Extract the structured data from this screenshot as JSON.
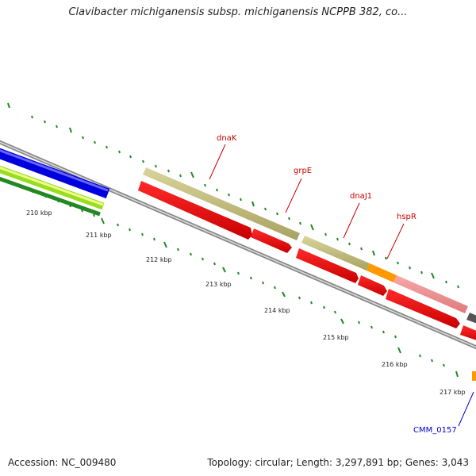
{
  "title": "Clavibacter michiganensis subsp. michiganensis NCPPB 382, co...",
  "genes": [
    {
      "name": "dnaK",
      "color": "#cc0000"
    },
    {
      "name": "grpE",
      "color": "#cc0000"
    },
    {
      "name": "dnaJ1",
      "color": "#cc0000"
    },
    {
      "name": "hspR",
      "color": "#cc0000"
    },
    {
      "name": "CMM_0157",
      "color": "#0000cc"
    }
  ],
  "ruler_labels": [
    "210 kbp",
    "211 kbp",
    "212 kbp",
    "213 kbp",
    "214 kbp",
    "215 kbp",
    "216 kbp",
    "217 kbp"
  ],
  "footer": {
    "accession": "Accession: NC_009480",
    "stats": "Topology: circular; Length: 3,297,891 bp; Genes: 3,043"
  }
}
